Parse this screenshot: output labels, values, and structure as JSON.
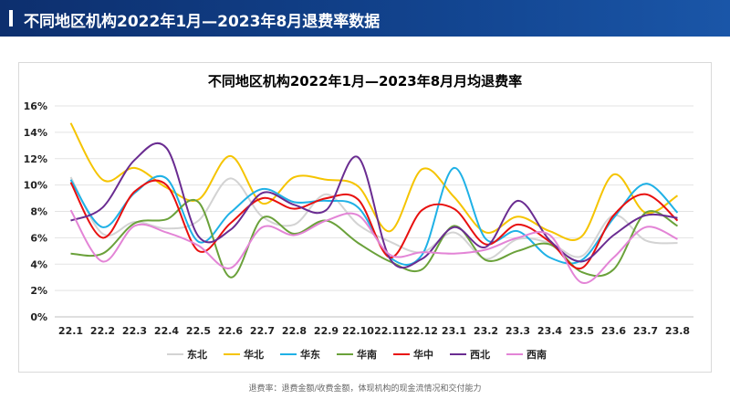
{
  "header": {
    "title": "不同地区机构2022年1月—2023年8月退费率数据"
  },
  "footnote": "退费率：退费金额/收费金额，体现机构的现金流情况和交付能力",
  "chart_data": {
    "type": "line",
    "title": "不同地区机构2022年1月—2023年8月月均退费率",
    "categories": [
      "22.1",
      "22.2",
      "22.3",
      "22.4",
      "22.5",
      "22.6",
      "22.7",
      "22.8",
      "22.9",
      "22.10",
      "22.11",
      "22.12",
      "23.1",
      "23.2",
      "23.3",
      "23.4",
      "23.5",
      "23.6",
      "23.7",
      "23.8"
    ],
    "ylim": [
      0,
      16
    ],
    "yticks": [
      "0%",
      "2%",
      "4%",
      "6%",
      "8%",
      "10%",
      "12%",
      "14%",
      "16%"
    ],
    "grid": true,
    "legend_position": "bottom",
    "series": [
      {
        "name": "东北",
        "color": "#d3d3d3",
        "values": [
          10.6,
          6.3,
          7.2,
          6.7,
          7.3,
          10.5,
          7.6,
          7.0,
          9.3,
          7.0,
          5.7,
          4.9,
          6.4,
          4.4,
          5.9,
          5.6,
          4.6,
          7.7,
          5.8,
          5.6
        ]
      },
      {
        "name": "华北",
        "color": "#f5c400",
        "values": [
          14.7,
          10.4,
          11.3,
          9.8,
          8.9,
          12.2,
          8.6,
          10.6,
          10.4,
          9.9,
          6.5,
          11.2,
          9.1,
          6.4,
          7.6,
          6.5,
          6.1,
          10.8,
          7.9,
          9.2
        ]
      },
      {
        "name": "华东",
        "color": "#1fb1e6",
        "values": [
          10.4,
          6.8,
          9.4,
          10.5,
          5.7,
          7.9,
          9.7,
          8.7,
          8.8,
          8.3,
          4.5,
          4.7,
          11.3,
          5.9,
          6.5,
          4.5,
          4.3,
          7.5,
          10.1,
          7.9
        ]
      },
      {
        "name": "华南",
        "color": "#6aa13a",
        "values": [
          4.8,
          4.8,
          7.1,
          7.4,
          8.7,
          3.0,
          7.5,
          6.3,
          7.3,
          5.6,
          4.2,
          3.6,
          6.9,
          4.3,
          5.0,
          5.5,
          3.4,
          3.6,
          7.9,
          6.9
        ]
      },
      {
        "name": "华中",
        "color": "#e8100f",
        "values": [
          10.2,
          6.0,
          9.5,
          10.0,
          5.0,
          7.1,
          9.0,
          8.2,
          9.0,
          8.9,
          4.5,
          8.1,
          8.2,
          5.5,
          7.0,
          5.7,
          3.7,
          7.7,
          9.3,
          7.3
        ]
      },
      {
        "name": "西北",
        "color": "#6a2c91",
        "values": [
          7.3,
          8.3,
          11.9,
          12.8,
          6.1,
          6.6,
          9.4,
          8.5,
          8.1,
          12.1,
          4.4,
          4.4,
          6.8,
          5.3,
          8.8,
          5.8,
          4.2,
          6.2,
          7.7,
          7.5
        ]
      },
      {
        "name": "西南",
        "color": "#e384d6",
        "values": [
          8.1,
          4.2,
          6.9,
          6.4,
          5.4,
          3.7,
          6.8,
          6.2,
          7.3,
          7.7,
          4.7,
          4.9,
          4.8,
          5.1,
          6.0,
          6.2,
          2.6,
          4.5,
          6.8,
          5.9
        ]
      }
    ]
  }
}
